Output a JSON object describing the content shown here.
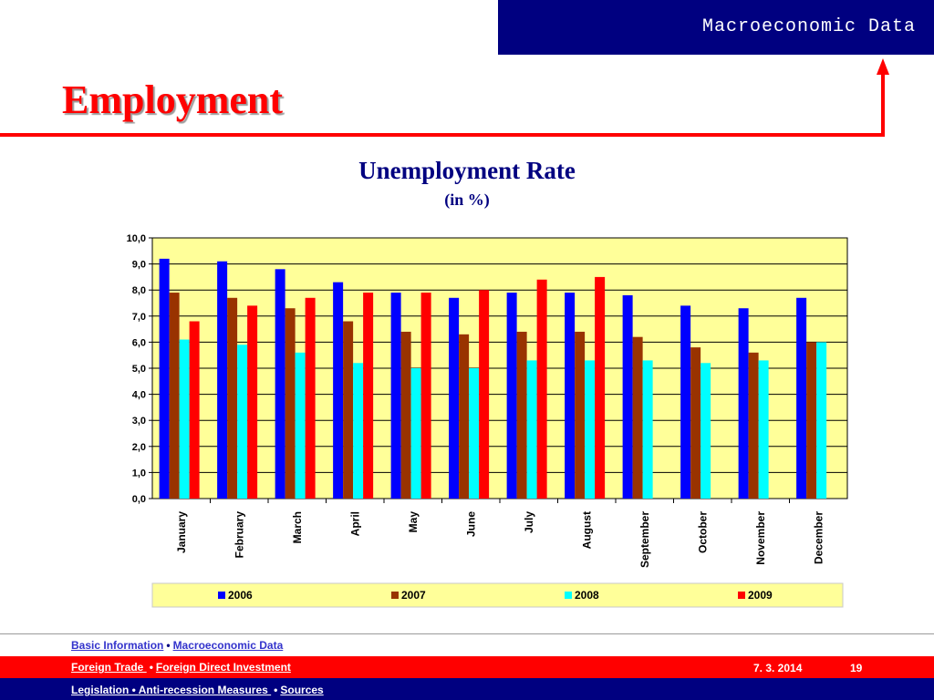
{
  "header": {
    "section_title": "Macroeconomic Data"
  },
  "page": {
    "title": "Employment",
    "date": "7. 3. 2014",
    "page_number": "19"
  },
  "colors": {
    "navy": "#000080",
    "red": "#ff0000",
    "plot_bg": "#ffff99"
  },
  "chart_data": {
    "type": "bar",
    "title": "Unemployment Rate",
    "subtitle": "(in %)",
    "categories": [
      "January",
      "February",
      "March",
      "April",
      "May",
      "June",
      "July",
      "August",
      "September",
      "October",
      "November",
      "December"
    ],
    "series": [
      {
        "name": "2006",
        "color": "#0000ff",
        "values": [
          9.2,
          9.1,
          8.8,
          8.3,
          7.9,
          7.7,
          7.9,
          7.9,
          7.8,
          7.4,
          7.3,
          7.7
        ]
      },
      {
        "name": "2007",
        "color": "#993300",
        "values": [
          7.9,
          7.7,
          7.3,
          6.8,
          6.4,
          6.3,
          6.4,
          6.4,
          6.2,
          5.8,
          5.6,
          6.0
        ]
      },
      {
        "name": "2008",
        "color": "#00ffff",
        "values": [
          6.1,
          5.9,
          5.6,
          5.2,
          5.0,
          5.0,
          5.3,
          5.3,
          5.3,
          5.2,
          5.3,
          6.0
        ]
      },
      {
        "name": "2009",
        "color": "#ff0000",
        "values": [
          6.8,
          7.4,
          7.7,
          7.9,
          7.9,
          8.0,
          8.4,
          8.5,
          null,
          null,
          null,
          null
        ]
      }
    ],
    "ylim": [
      0,
      10
    ],
    "yticks": [
      "0,0",
      "1,0",
      "2,0",
      "3,0",
      "4,0",
      "5,0",
      "6,0",
      "7,0",
      "8,0",
      "9,0",
      "10,0"
    ],
    "grid": true,
    "legend_position": "bottom"
  },
  "footer": {
    "row1": [
      {
        "label": "Basic Information"
      },
      {
        "label": "Macroeconomic Data "
      }
    ],
    "row2": [
      {
        "label": "Foreign Trade "
      },
      {
        "label": "Foreign Direct Investment"
      }
    ],
    "row3": [
      {
        "label": "Legislation • "
      },
      {
        "label": "Anti-recession Measures "
      },
      {
        "label": "Sources"
      }
    ],
    "separator": "•"
  }
}
